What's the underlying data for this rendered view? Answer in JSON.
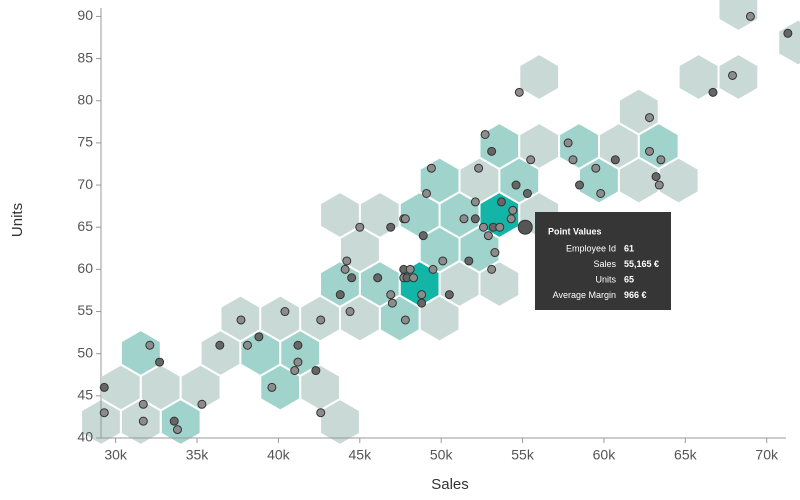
{
  "chart_data": {
    "type": "scatter",
    "x_label": "Sales",
    "y_label": "Units",
    "xlim": [
      29100,
      71800
    ],
    "ylim": [
      40,
      91
    ],
    "xticks": [
      {
        "value": 30000,
        "label": "30k"
      },
      {
        "value": 35000,
        "label": "35k"
      },
      {
        "value": 40000,
        "label": "40k"
      },
      {
        "value": 45000,
        "label": "45k"
      },
      {
        "value": 50000,
        "label": "50k"
      },
      {
        "value": 55000,
        "label": "55k"
      },
      {
        "value": 60000,
        "label": "60k"
      },
      {
        "value": 65000,
        "label": "65k"
      },
      {
        "value": 70000,
        "label": "70k"
      }
    ],
    "yticks": [
      40,
      45,
      50,
      55,
      60,
      65,
      70,
      75,
      80,
      85,
      90
    ],
    "color": "#8c8c8c",
    "x": [
      29300,
      29300,
      32100,
      32700,
      31700,
      31700,
      33600,
      33800,
      35300,
      36400,
      37700,
      38100,
      38800,
      39600,
      40400,
      41200,
      41200,
      41000,
      42300,
      42600,
      42600,
      43800,
      44200,
      44100,
      44500,
      44400,
      45000,
      46100,
      46900,
      47000,
      46900,
      47700,
      47800,
      47700,
      47700,
      47800,
      47900,
      48100,
      48300,
      48900,
      49100,
      49500,
      48800,
      48800,
      50100,
      50500,
      49400,
      51400,
      51700,
      52300,
      52100,
      52100,
      52600,
      52900,
      53200,
      53100,
      53600,
      53700,
      53300,
      52700,
      53100,
      54300,
      54400,
      54600,
      54800,
      55500,
      55300,
      57800,
      58100,
      58500,
      59500,
      59800,
      60700,
      62800,
      62800,
      63200,
      63500,
      63400,
      66700,
      67900,
      69000,
      71300
    ],
    "values": [
      46,
      43,
      51,
      49,
      44,
      42,
      42,
      41,
      44,
      51,
      54,
      51,
      52,
      46,
      55,
      51,
      49,
      48,
      48,
      54,
      43,
      57,
      61,
      60,
      59,
      55,
      65,
      59,
      57,
      56,
      65,
      66,
      66,
      60,
      59,
      54,
      59,
      60,
      59,
      64,
      69,
      60,
      56,
      57,
      61,
      57,
      72,
      66,
      61,
      72,
      68,
      66,
      65,
      64,
      65,
      60,
      65,
      68,
      62,
      76,
      74,
      66,
      67,
      70,
      81,
      73,
      69,
      75,
      73,
      70,
      72,
      69,
      73,
      78,
      74,
      71,
      73,
      70,
      81,
      83,
      90,
      88
    ],
    "tooltip": {
      "title": "Point Values",
      "rows": [
        {
          "label": "Employee Id",
          "value": 61
        },
        {
          "label": "Sales",
          "value": 55165,
          "value_label": "55,165 €"
        },
        {
          "label": "Units",
          "value": 65
        },
        {
          "label": "Average Margin",
          "value": 966,
          "value_label": "966 €"
        }
      ]
    }
  }
}
